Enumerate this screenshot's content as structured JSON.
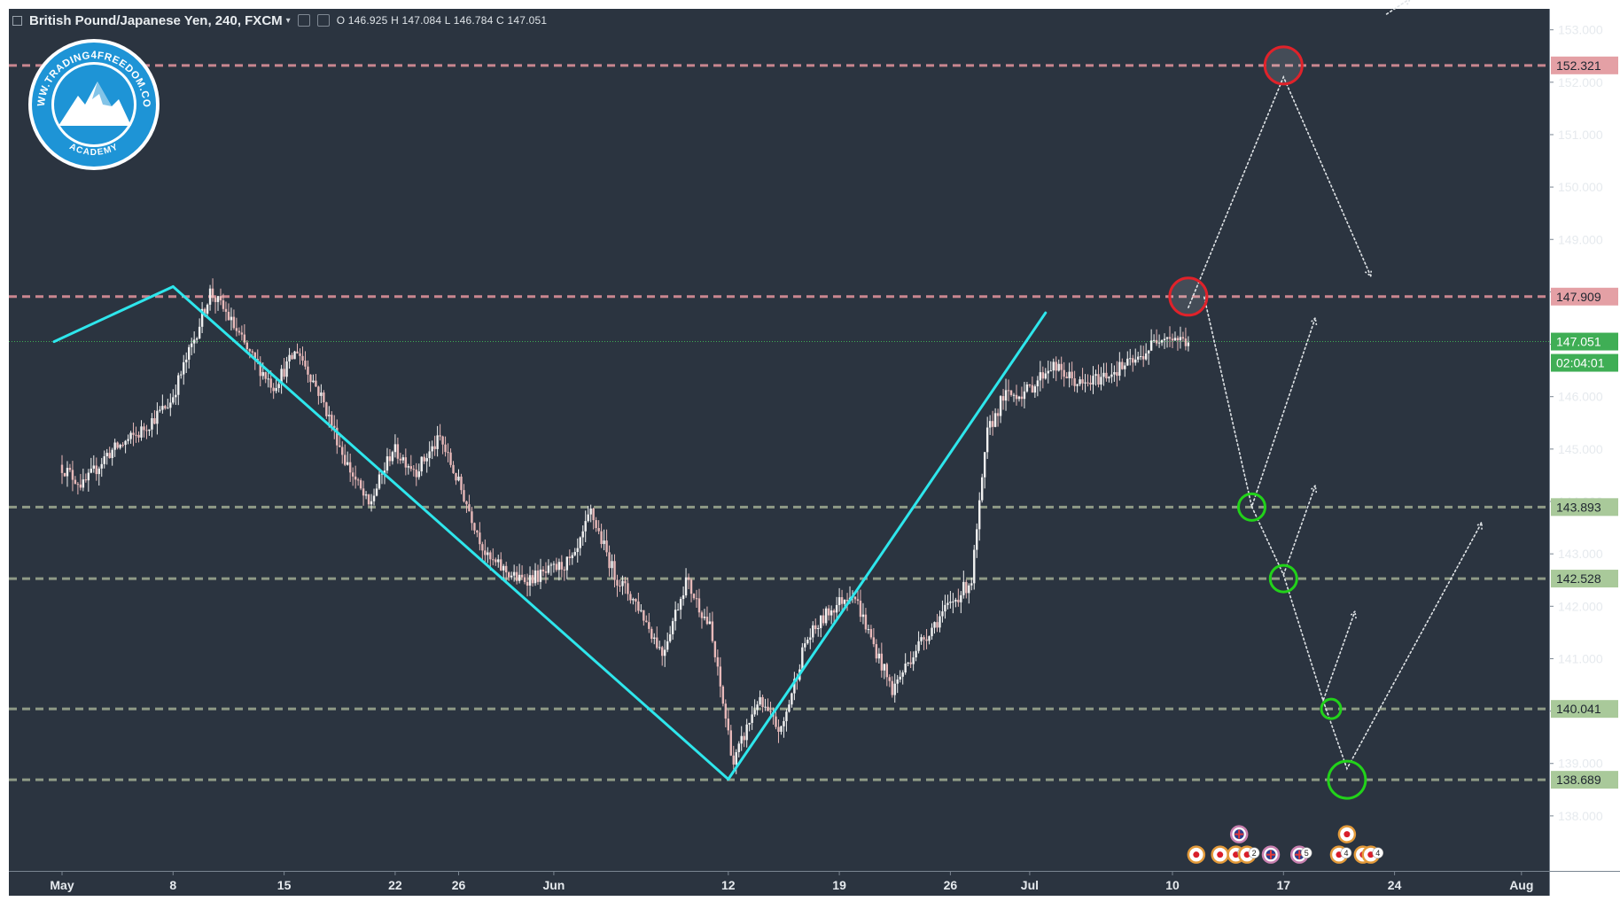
{
  "header": {
    "symbol": "British Pound/Japanese Yen, 240, FXCM",
    "ohlc": "O 146.925 H 147.084 L 146.784 C 147.051"
  },
  "logo": {
    "text_top": "WWW.TRADING4FREEDOM.COM",
    "text_bottom": "ACADEMY"
  },
  "colors": {
    "background": "#2b3440",
    "axis_background": "#2b3440",
    "trendline": "#2ee6ec",
    "resistance": "#c9868f",
    "support": "#8f9a86",
    "candle_up": "#f1f1f1",
    "candle_down": "#e8b9b9",
    "current_price_badge": "#3fae55",
    "red_circle": "#e0222a",
    "green_circle": "#22d21a"
  },
  "chart_data": {
    "type": "line",
    "title": "British Pound/Japanese Yen, 240, FXCM",
    "xlabel": "",
    "ylabel": "",
    "ylim": [
      136.95,
      153.4
    ],
    "grid": false,
    "x_ticks": [
      {
        "day": 0,
        "label": "May"
      },
      {
        "day": 7,
        "label": "8"
      },
      {
        "day": 14,
        "label": "15"
      },
      {
        "day": 21,
        "label": "22"
      },
      {
        "day": 25,
        "label": "26"
      },
      {
        "day": 31,
        "label": "Jun"
      },
      {
        "day": 42,
        "label": "12"
      },
      {
        "day": 49,
        "label": "19"
      },
      {
        "day": 56,
        "label": "26"
      },
      {
        "day": 61,
        "label": "Jul"
      },
      {
        "day": 70,
        "label": "10"
      },
      {
        "day": 77,
        "label": "17"
      },
      {
        "day": 84,
        "label": "24"
      },
      {
        "day": 92,
        "label": "Aug"
      }
    ],
    "y_ticks": [
      138.0,
      139.0,
      140.0,
      141.0,
      142.0,
      143.0,
      144.0,
      145.0,
      146.0,
      147.0,
      148.0,
      149.0,
      150.0,
      151.0,
      152.0,
      153.0
    ],
    "y_tick_labels": [
      "138.000",
      "139.000",
      "140.000",
      "141.000",
      "142.000",
      "143.000",
      "144.000",
      "145.000",
      "146.000",
      "147.000",
      "148.000",
      "149.000",
      "150.000",
      "151.000",
      "152.000",
      "153.000"
    ],
    "price_path": [
      {
        "day": 0.0,
        "price": 144.7
      },
      {
        "day": 1.5,
        "price": 144.3
      },
      {
        "day": 3.0,
        "price": 144.9
      },
      {
        "day": 5.0,
        "price": 145.3
      },
      {
        "day": 7.0,
        "price": 145.9
      },
      {
        "day": 8.5,
        "price": 147.1
      },
      {
        "day": 9.5,
        "price": 148.0
      },
      {
        "day": 10.5,
        "price": 147.6
      },
      {
        "day": 12.0,
        "price": 146.8
      },
      {
        "day": 13.5,
        "price": 146.2
      },
      {
        "day": 15.0,
        "price": 146.9
      },
      {
        "day": 16.5,
        "price": 146.0
      },
      {
        "day": 18.0,
        "price": 144.8
      },
      {
        "day": 19.5,
        "price": 143.9
      },
      {
        "day": 21.0,
        "price": 145.0
      },
      {
        "day": 22.5,
        "price": 144.6
      },
      {
        "day": 24.0,
        "price": 145.2
      },
      {
        "day": 25.5,
        "price": 144.1
      },
      {
        "day": 27.0,
        "price": 142.9
      },
      {
        "day": 29.0,
        "price": 142.5
      },
      {
        "day": 30.5,
        "price": 142.6
      },
      {
        "day": 32.5,
        "price": 142.9
      },
      {
        "day": 33.5,
        "price": 143.8
      },
      {
        "day": 35.0,
        "price": 142.6
      },
      {
        "day": 36.5,
        "price": 142.0
      },
      {
        "day": 38.0,
        "price": 141.1
      },
      {
        "day": 39.5,
        "price": 142.5
      },
      {
        "day": 41.0,
        "price": 141.6
      },
      {
        "day": 42.5,
        "price": 139.0
      },
      {
        "day": 44.0,
        "price": 140.2
      },
      {
        "day": 45.5,
        "price": 139.6
      },
      {
        "day": 47.0,
        "price": 141.3
      },
      {
        "day": 48.5,
        "price": 141.9
      },
      {
        "day": 50.0,
        "price": 142.3
      },
      {
        "day": 51.0,
        "price": 141.5
      },
      {
        "day": 52.5,
        "price": 140.4
      },
      {
        "day": 54.0,
        "price": 141.2
      },
      {
        "day": 55.5,
        "price": 141.8
      },
      {
        "day": 57.5,
        "price": 142.5
      },
      {
        "day": 58.5,
        "price": 145.3
      },
      {
        "day": 59.5,
        "price": 146.0
      },
      {
        "day": 61.0,
        "price": 146.1
      },
      {
        "day": 62.5,
        "price": 146.6
      },
      {
        "day": 64.5,
        "price": 146.2
      },
      {
        "day": 66.5,
        "price": 146.5
      },
      {
        "day": 68.0,
        "price": 146.7
      },
      {
        "day": 69.5,
        "price": 147.2
      },
      {
        "day": 71.0,
        "price": 147.05
      }
    ],
    "trendlines": [
      {
        "name": "",
        "points": [
          [
            -0.5,
            147.05
          ],
          [
            7.0,
            148.1
          ]
        ]
      },
      {
        "name": "",
        "points": [
          [
            7.0,
            148.1
          ],
          [
            42.0,
            138.7
          ]
        ]
      },
      {
        "name": "",
        "points": [
          [
            42.0,
            138.7
          ],
          [
            62.0,
            147.6
          ]
        ]
      }
    ],
    "horizontal_levels": [
      {
        "price": 152.321,
        "label": "152.321",
        "kind": "resistance"
      },
      {
        "price": 147.909,
        "label": "147.909",
        "kind": "resistance"
      },
      {
        "price": 143.893,
        "label": "143.893",
        "kind": "support"
      },
      {
        "price": 142.528,
        "label": "142.528",
        "kind": "support"
      },
      {
        "price": 140.041,
        "label": "140.041",
        "kind": "support"
      },
      {
        "price": 138.689,
        "label": "138.689",
        "kind": "support"
      }
    ],
    "current_price": {
      "price": 147.051,
      "label": "147.051",
      "countdown": "02:04:01"
    },
    "projection_paths": [
      {
        "points": [
          [
            71.0,
            147.7
          ],
          [
            77.0,
            152.1
          ],
          [
            82.5,
            148.3
          ]
        ]
      },
      {
        "points": [
          [
            72.0,
            147.9
          ],
          [
            75.0,
            143.9
          ],
          [
            79.0,
            147.5
          ]
        ]
      },
      {
        "points": [
          [
            75.0,
            143.9
          ],
          [
            77.0,
            142.6
          ],
          [
            79.0,
            144.3
          ]
        ]
      },
      {
        "points": [
          [
            77.0,
            142.6
          ],
          [
            79.5,
            140.2
          ],
          [
            81.5,
            141.9
          ]
        ]
      },
      {
        "points": [
          [
            79.5,
            140.2
          ],
          [
            81.0,
            138.9
          ],
          [
            89.5,
            143.6
          ]
        ]
      },
      {
        "points": [
          [
            83.5,
            153.3
          ],
          [
            85.0,
            153.6
          ]
        ]
      }
    ],
    "circles": [
      {
        "day": 77.0,
        "price": 152.321,
        "color": "red",
        "size": "large"
      },
      {
        "day": 71.0,
        "price": 147.909,
        "color": "red",
        "size": "large"
      },
      {
        "day": 75.0,
        "price": 143.893,
        "color": "green",
        "size": "medium"
      },
      {
        "day": 77.0,
        "price": 142.528,
        "color": "green",
        "size": "medium"
      },
      {
        "day": 80.0,
        "price": 140.041,
        "color": "green",
        "size": "small"
      },
      {
        "day": 81.0,
        "price": 138.689,
        "color": "green",
        "size": "large"
      }
    ],
    "event_markers": [
      {
        "day": 71.5,
        "price": 137.26,
        "kind": "jp",
        "label": ""
      },
      {
        "day": 73.0,
        "price": 137.26,
        "kind": "jp",
        "label": ""
      },
      {
        "day": 74.0,
        "price": 137.26,
        "kind": "jp",
        "label": "5"
      },
      {
        "day": 74.7,
        "price": 137.26,
        "kind": "jp",
        "label": "2"
      },
      {
        "day": 74.2,
        "price": 137.65,
        "kind": "uk",
        "label": ""
      },
      {
        "day": 76.2,
        "price": 137.26,
        "kind": "uk",
        "label": ""
      },
      {
        "day": 78.0,
        "price": 137.26,
        "kind": "uk",
        "label": "5"
      },
      {
        "day": 80.5,
        "price": 137.26,
        "kind": "jp",
        "label": "4"
      },
      {
        "day": 81.0,
        "price": 137.65,
        "kind": "jp",
        "label": ""
      },
      {
        "day": 82.0,
        "price": 137.26,
        "kind": "jp",
        "label": "2"
      },
      {
        "day": 82.5,
        "price": 137.26,
        "kind": "jp",
        "label": "4"
      }
    ]
  }
}
